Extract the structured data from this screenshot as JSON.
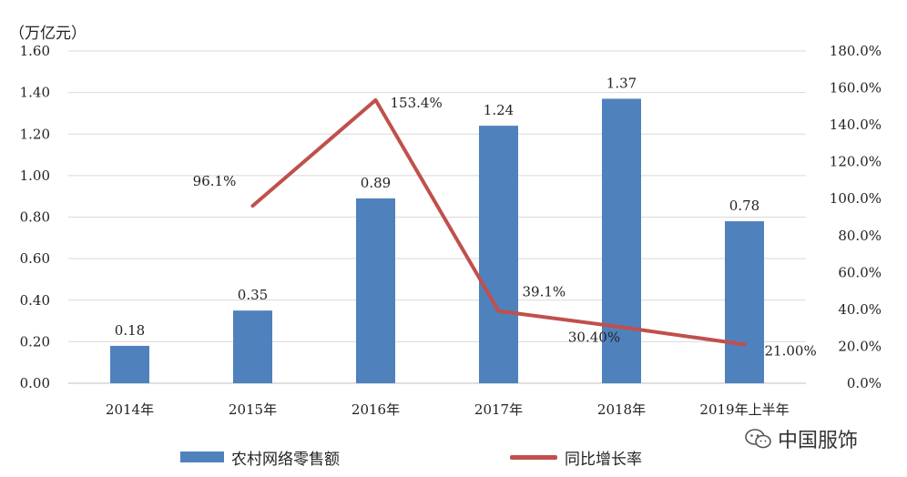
{
  "chart_data": {
    "type": "bar",
    "unit_label": "（万亿元）",
    "categories": [
      "2014年",
      "2015年",
      "2016年",
      "2017年",
      "2018年",
      "2019年上半年"
    ],
    "bar_series": {
      "name": "农村网络零售额",
      "values": [
        0.18,
        0.35,
        0.89,
        1.24,
        1.37,
        0.78
      ],
      "labels": [
        "0.18",
        "0.35",
        "0.89",
        "1.24",
        "1.37",
        "0.78"
      ],
      "color": "#4f81bd"
    },
    "line_series": {
      "name": "同比增长率",
      "points": [
        {
          "category": "2015年",
          "value": 96.1,
          "label": "96.1%"
        },
        {
          "category": "2016年",
          "value": 153.4,
          "label": "153.4%"
        },
        {
          "category": "2017年",
          "value": 39.1,
          "label": "39.1%"
        },
        {
          "category": "2018年",
          "value": 30.4,
          "label": "30.40%"
        },
        {
          "category": "2019年上半年",
          "value": 21.0,
          "label": "21.00%"
        }
      ],
      "color": "#c0504d"
    },
    "y_left": {
      "min": 0,
      "max": 1.6,
      "ticks": [
        "0.00",
        "0.20",
        "0.40",
        "0.60",
        "0.80",
        "1.00",
        "1.20",
        "1.40",
        "1.60"
      ]
    },
    "y_right": {
      "min": 0,
      "max": 180,
      "ticks": [
        "0.0%",
        "20.0%",
        "40.0%",
        "60.0%",
        "80.0%",
        "100.0%",
        "120.0%",
        "140.0%",
        "160.0%",
        "180.0%"
      ]
    },
    "grid": true,
    "legend_position": "bottom"
  },
  "watermark": {
    "text": "中国服饰",
    "icon": "wechat-icon"
  }
}
